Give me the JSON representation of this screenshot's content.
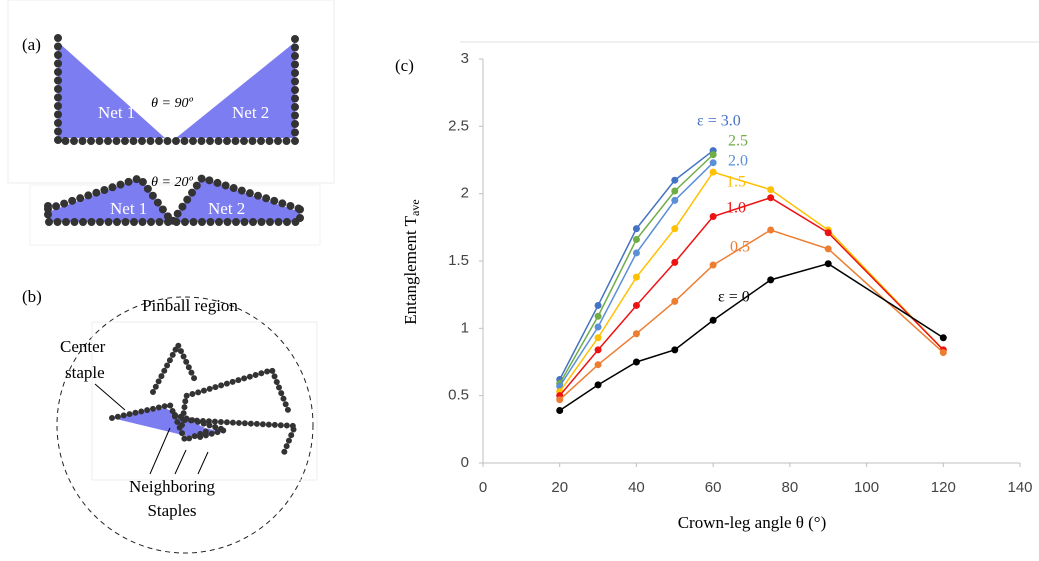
{
  "panel_a": {
    "label": "(a)",
    "top": {
      "net1": "Net 1",
      "net2": "Net 2",
      "angle": "θ = 90º"
    },
    "bottom": {
      "net1": "Net 1",
      "net2": "Net 2",
      "angle": "θ = 20º"
    }
  },
  "panel_b": {
    "label": "(b)",
    "region": "Pinball region",
    "center": [
      "Center",
      "staple"
    ],
    "neighbors": [
      "Neighboring",
      "Staples"
    ]
  },
  "chart_data": {
    "type": "line",
    "panel_label": "(c)",
    "xlabel": "Crown-leg angle θ (°)",
    "ylabel": "Entanglement T",
    "ylabel_subscript": "ave",
    "x": [
      20,
      30,
      40,
      50,
      60,
      75,
      90,
      120
    ],
    "xlim": [
      0,
      140
    ],
    "xticks": [
      0,
      20,
      40,
      60,
      80,
      100,
      120,
      140
    ],
    "ylim": [
      0,
      3
    ],
    "yticks": [
      0,
      0.5,
      1,
      1.5,
      2,
      2.5,
      3
    ],
    "grid": false,
    "series": [
      {
        "name": "ε = 3.0",
        "color": "#4472c4",
        "values": [
          0.62,
          1.17,
          1.74,
          2.1,
          2.32,
          null,
          null,
          null
        ]
      },
      {
        "name": "2.5",
        "color": "#70ad47",
        "values": [
          0.59,
          1.09,
          1.66,
          2.02,
          2.29,
          null,
          null,
          null
        ]
      },
      {
        "name": "2.0",
        "color": "#5b8fd8",
        "values": [
          0.57,
          1.01,
          1.56,
          1.95,
          2.23,
          null,
          null,
          null
        ]
      },
      {
        "name": "1.5",
        "color": "#ffc000",
        "values": [
          0.53,
          0.93,
          1.38,
          1.74,
          2.16,
          2.03,
          1.73,
          0.84
        ]
      },
      {
        "name": "1.0",
        "color": "#ee1111",
        "values": [
          0.5,
          0.84,
          1.17,
          1.49,
          1.83,
          1.97,
          1.71,
          0.84
        ]
      },
      {
        "name": "0.5",
        "color": "#ed7d31",
        "values": [
          0.47,
          0.73,
          0.96,
          1.2,
          1.47,
          1.73,
          1.59,
          0.82
        ]
      },
      {
        "name": "ε = 0",
        "color": "#000000",
        "values": [
          0.39,
          0.58,
          0.75,
          0.84,
          1.06,
          1.36,
          1.48,
          0.93
        ]
      }
    ]
  }
}
